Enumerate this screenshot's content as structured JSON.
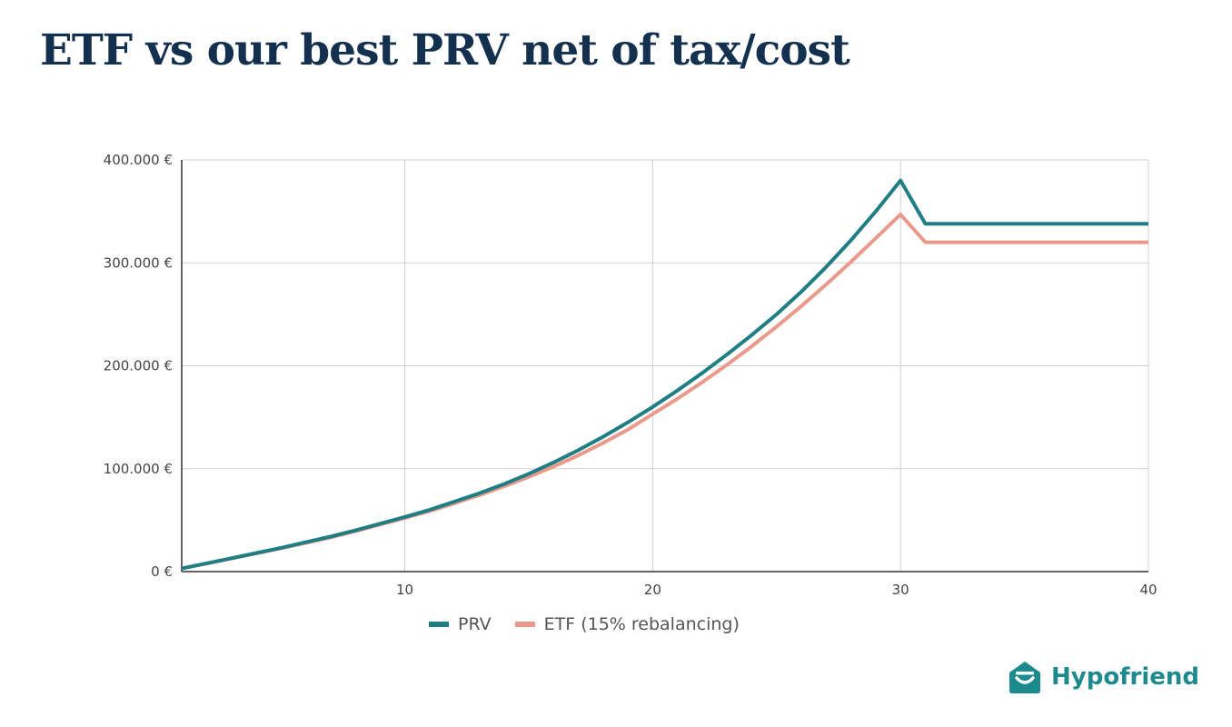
{
  "title": "ETF vs our best PRV net of tax/cost",
  "brand": {
    "name": "Hypofriend",
    "icon": "house-logo-icon",
    "color": "#1d8a8e"
  },
  "colors": {
    "prv": "#1f7e84",
    "etf": "#e99a8b",
    "grid": "#d0d0d0",
    "axis": "#333333",
    "title": "#13304e"
  },
  "chart_data": {
    "type": "line",
    "title": "ETF vs our best PRV net of tax/cost",
    "xlabel": "",
    "ylabel": "",
    "xlim": [
      1,
      40
    ],
    "ylim": [
      0,
      400000
    ],
    "grid": true,
    "legend_position": "bottom-center",
    "x_ticks": [
      "10",
      "20",
      "30",
      "40"
    ],
    "y_ticks": [
      "0 €",
      "100.000 €",
      "200.000 €",
      "300.000 €",
      "400.000 €"
    ],
    "series": [
      {
        "name": "PRV",
        "color": "#1f7e84",
        "points": [
          [
            1,
            3000
          ],
          [
            2,
            8000
          ],
          [
            3,
            13000
          ],
          [
            4,
            18000
          ],
          [
            5,
            23000
          ],
          [
            6,
            28500
          ],
          [
            7,
            34000
          ],
          [
            8,
            40000
          ],
          [
            9,
            46500
          ],
          [
            10,
            53000
          ],
          [
            11,
            60000
          ],
          [
            12,
            68000
          ],
          [
            13,
            76000
          ],
          [
            14,
            85000
          ],
          [
            15,
            95000
          ],
          [
            16,
            106000
          ],
          [
            17,
            118000
          ],
          [
            18,
            131000
          ],
          [
            19,
            145000
          ],
          [
            20,
            160000
          ],
          [
            21,
            176000
          ],
          [
            22,
            193000
          ],
          [
            23,
            211000
          ],
          [
            24,
            230000
          ],
          [
            25,
            250000
          ],
          [
            26,
            272000
          ],
          [
            27,
            296000
          ],
          [
            28,
            322000
          ],
          [
            29,
            350000
          ],
          [
            30,
            380000
          ],
          [
            31,
            338000
          ],
          [
            32,
            338000
          ],
          [
            35,
            338000
          ],
          [
            40,
            338000
          ]
        ]
      },
      {
        "name": "ETF (15% rebalancing)",
        "color": "#e99a8b",
        "points": [
          [
            1,
            3000
          ],
          [
            2,
            7800
          ],
          [
            3,
            12700
          ],
          [
            4,
            17600
          ],
          [
            5,
            22600
          ],
          [
            6,
            27800
          ],
          [
            7,
            33200
          ],
          [
            8,
            39200
          ],
          [
            9,
            45600
          ],
          [
            10,
            52000
          ],
          [
            11,
            58800
          ],
          [
            12,
            66300
          ],
          [
            13,
            74200
          ],
          [
            14,
            82800
          ],
          [
            15,
            92000
          ],
          [
            16,
            102000
          ],
          [
            17,
            113000
          ],
          [
            18,
            125000
          ],
          [
            19,
            138000
          ],
          [
            20,
            153000
          ],
          [
            21,
            168000
          ],
          [
            22,
            184000
          ],
          [
            23,
            201000
          ],
          [
            24,
            219000
          ],
          [
            25,
            238000
          ],
          [
            26,
            258000
          ],
          [
            27,
            279000
          ],
          [
            28,
            301000
          ],
          [
            29,
            324000
          ],
          [
            30,
            347000
          ],
          [
            31,
            320000
          ],
          [
            32,
            320000
          ],
          [
            35,
            320000
          ],
          [
            40,
            320000
          ]
        ]
      }
    ]
  }
}
